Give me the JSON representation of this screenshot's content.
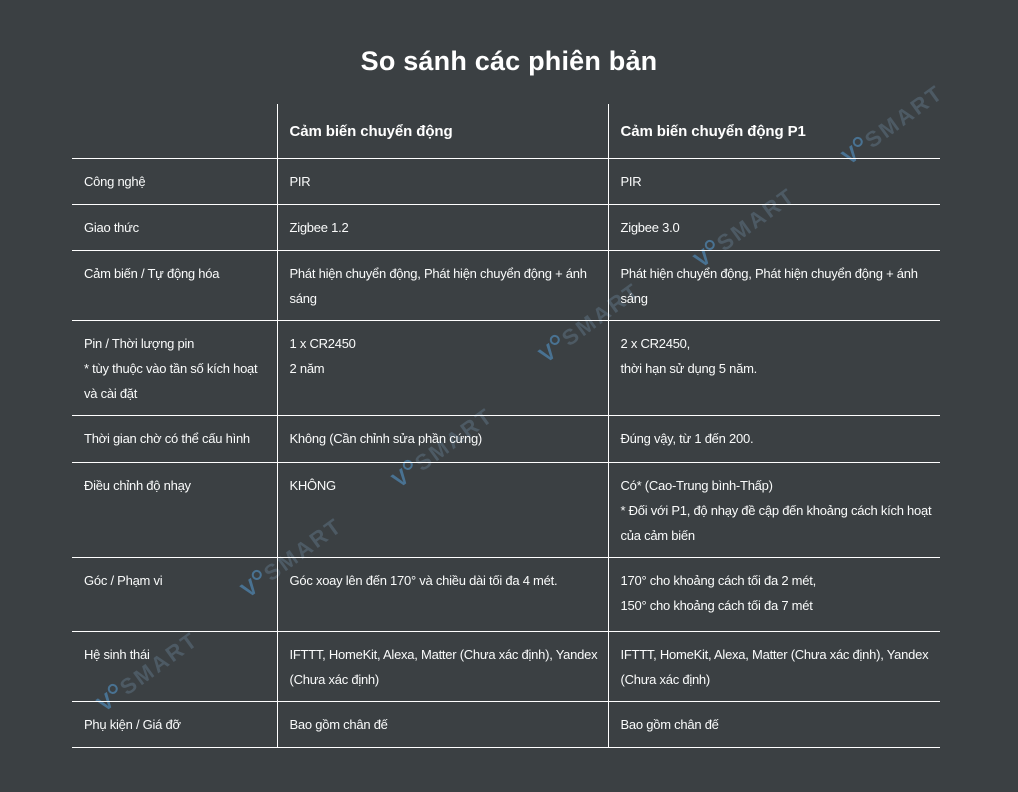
{
  "title": "So sánh các phiên bản",
  "watermark": {
    "logo": "V",
    "text": "SMART"
  },
  "colors": {
    "background": "#3b4043",
    "line": "#ffffff",
    "text": "#fafbfb",
    "watermark_gray": "#4d5a64",
    "watermark_blue": "#497292"
  },
  "table": {
    "columns": [
      "Cảm biến chuyển động",
      "Cảm biến chuyển động P1"
    ],
    "rows": [
      {
        "label": "Công nghệ",
        "col1": "PIR",
        "col2": "PIR"
      },
      {
        "label": "Giao thức",
        "col1": "Zigbee 1.2",
        "col2": "Zigbee 3.0"
      },
      {
        "label": "Cảm biến / Tự động hóa",
        "col1": "Phát hiện chuyển động, Phát hiện chuyển động + ánh sáng",
        "col2": "Phát hiện chuyển động, Phát hiện chuyển động + ánh sáng"
      },
      {
        "label": "Pin / Thời lượng pin\n* tùy thuộc vào tần số kích hoạt\nvà cài đặt",
        "col1": "1 x CR2450\n2 năm",
        "col2": "2 x CR2450,\nthời hạn sử dụng 5 năm."
      },
      {
        "label": "Thời gian chờ có thể cấu hình",
        "col1": "Không (Cần chỉnh sửa phần cứng)",
        "col2": "Đúng vậy, từ 1 đến 200."
      },
      {
        "label": "Điều chỉnh độ nhạy",
        "col1": "KHÔNG",
        "col2": "Có* (Cao-Trung bình-Thấp)\n* Đối với P1, độ nhạy đề cập đến khoảng cách kích hoạt của cảm biến"
      },
      {
        "label": "Góc / Phạm vi",
        "col1": "Góc xoay lên đến 170° và chiều dài tối đa 4 mét.",
        "col2": "170° cho khoảng cách tối đa 2 mét,\n150° cho khoảng cách tối đa 7 mét"
      },
      {
        "label": "Hệ sinh thái",
        "col1": "IFTTT, HomeKit, Alexa, Matter (Chưa xác định), Yandex (Chưa xác định)",
        "col2": "IFTTT, HomeKit, Alexa, Matter (Chưa xác định), Yandex (Chưa xác định)"
      },
      {
        "label": "Phụ kiện / Giá đỡ",
        "col1": "Bao gồm chân đế",
        "col2": "Bao gồm chân đế"
      }
    ]
  }
}
